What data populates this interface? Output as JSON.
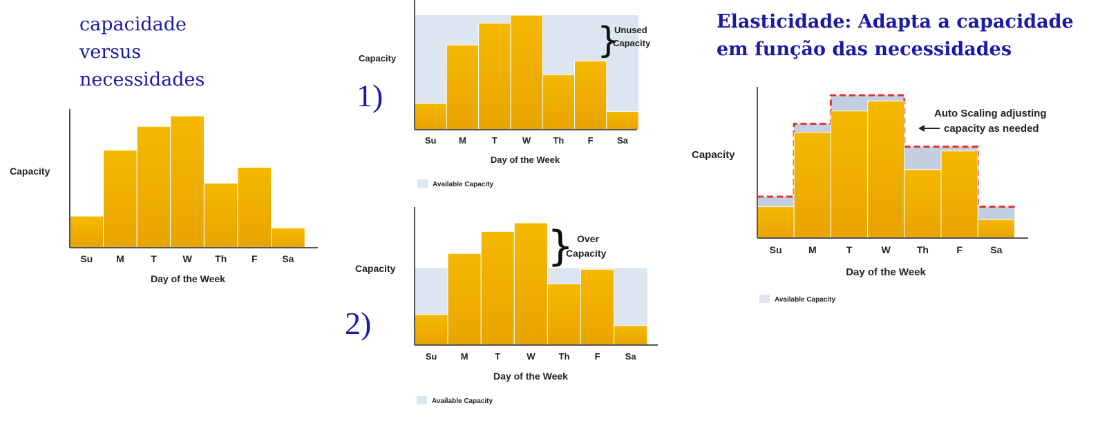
{
  "intro": {
    "lines": [
      "capacidade",
      "versus",
      "necessidades"
    ]
  },
  "elastic": {
    "lines": [
      "Elasticidade: Adapta a capacidade",
      "em função das necessidades"
    ]
  },
  "scenario_labels": [
    "1)",
    "2)"
  ],
  "colors": {
    "bar": "#f5b800",
    "bar_dark": "#e8a400",
    "available": "#dbe6f0",
    "available_dark": "#c3cfe0",
    "axis": "#555555",
    "step_line": "#e03030",
    "heading": "#1a1aa6"
  },
  "chart_data": [
    {
      "type": "bar",
      "categories": [
        "Su",
        "M",
        "T",
        "W",
        "Th",
        "F",
        "Sa"
      ],
      "values": [
        24,
        74,
        92,
        100,
        49,
        61,
        15
      ],
      "ylim": [
        0,
        100
      ],
      "ylabel": "Capacity",
      "xlabel": "Day of the Week",
      "grid": false
    },
    {
      "type": "bar",
      "categories": [
        "Su",
        "M",
        "T",
        "W",
        "Th",
        "F",
        "Sa"
      ],
      "values": [
        23,
        74,
        93,
        100,
        48,
        60,
        16
      ],
      "ylim": [
        0,
        100
      ],
      "ylabel": "Capacity",
      "xlabel": "Day of the Week",
      "available_capacity": 100,
      "annotation": [
        "Unused",
        "Capacity"
      ],
      "legend": "Available Capacity"
    },
    {
      "type": "bar",
      "categories": [
        "Su",
        "M",
        "T",
        "W",
        "Th",
        "F",
        "Sa"
      ],
      "values": [
        25,
        75,
        93,
        100,
        50,
        62,
        16
      ],
      "ylim": [
        0,
        100
      ],
      "ylabel": "Capacity",
      "xlabel": "Day of the Week",
      "available_capacity": 63,
      "annotation": [
        "Over",
        "Capacity"
      ],
      "legend": "Available Capacity"
    },
    {
      "type": "bar",
      "categories": [
        "Su",
        "M",
        "T",
        "W",
        "Th",
        "F",
        "Sa"
      ],
      "values": [
        22,
        74,
        89,
        96,
        48,
        61,
        13
      ],
      "ylim": [
        0,
        100
      ],
      "ylabel": "Capacity",
      "xlabel": "Day of the Week",
      "available_capacity": [
        29,
        80,
        100,
        100,
        64,
        64,
        22
      ],
      "annotation": [
        "Auto Scaling adjusting",
        "capacity as needed"
      ],
      "legend": "Available Capacity"
    }
  ]
}
